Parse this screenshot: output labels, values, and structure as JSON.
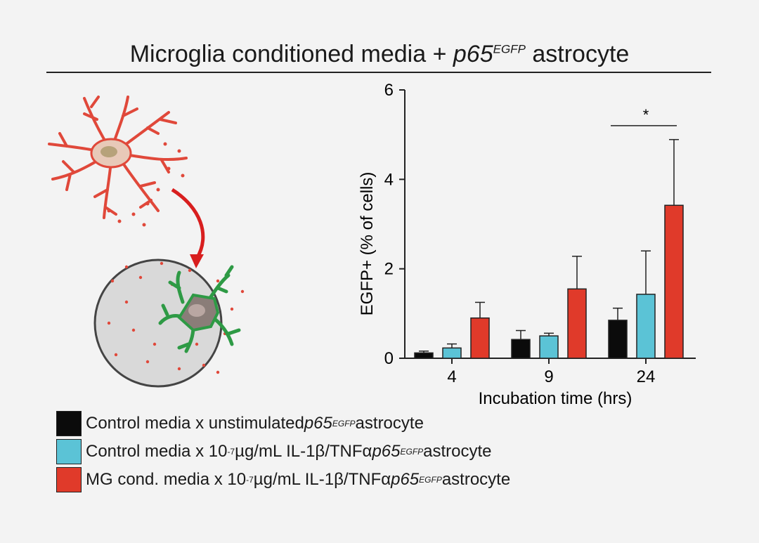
{
  "header": {
    "title_main": "Microglia conditioned media + ",
    "title_gene": "p65",
    "title_sup": "EGFP",
    "title_tail": " astrocyte"
  },
  "colors": {
    "control_unstimulated": "#0b0b0b",
    "control_stimulated": "#5bc3d6",
    "mg_conditioned": "#e03a2a",
    "microglia": "#e0483a",
    "astrocyte": "#2e9a45",
    "dish": "#d9d9d9"
  },
  "illustration": {
    "microglia_label": "microglia-cell-icon",
    "dish_label": "culture-dish-icon",
    "astrocyte_label": "astrocyte-cell-icon",
    "arrow_label": "red-arrow-icon"
  },
  "chart_data": {
    "type": "bar",
    "categories": [
      "4",
      "9",
      "24"
    ],
    "xlabel": "Incubation time (hrs)",
    "ylabel": "EGFP+ (% of cells)",
    "ylim": [
      0,
      6
    ],
    "yticks": [
      0,
      2,
      4,
      6
    ],
    "grid": false,
    "series": [
      {
        "name": "Control media x unstimulated p65EGFP astrocyte",
        "color": "#0b0b0b",
        "values": [
          0.12,
          0.42,
          0.85
        ],
        "errors": [
          0.04,
          0.2,
          0.27
        ]
      },
      {
        "name": "Control media x 10-7 µg/mL IL-1β/TNFα p65EGFP astrocyte",
        "color": "#5bc3d6",
        "values": [
          0.23,
          0.5,
          1.43
        ],
        "errors": [
          0.09,
          0.06,
          0.97
        ]
      },
      {
        "name": "MG cond. media x 10-7 µg/mL IL-1β/TNFα p65EGFP astrocyte",
        "color": "#e03a2a",
        "values": [
          0.9,
          1.55,
          3.42
        ],
        "errors": [
          0.35,
          0.73,
          1.47
        ]
      }
    ],
    "annotations": [
      {
        "text": "*",
        "between": [
          "24:series1",
          "24:series3"
        ]
      }
    ]
  },
  "legend": {
    "items": [
      {
        "pre": "Control media x unstimulated ",
        "exp": "",
        "mid": "",
        "gene": "p65",
        "sup": "EGFP",
        "post": " astrocyte",
        "color": "#0b0b0b"
      },
      {
        "pre": "Control media x 10",
        "exp": "-7",
        "mid": " µg/mL IL-1β/TNFα ",
        "gene": "p65",
        "sup": "EGFP",
        "post": " astrocyte",
        "color": "#5bc3d6"
      },
      {
        "pre": "MG cond. media x 10",
        "exp": "-7",
        "mid": " µg/mL IL-1β/TNFα ",
        "gene": "p65",
        "sup": "EGFP",
        "post": " astrocyte",
        "color": "#e03a2a"
      }
    ]
  }
}
